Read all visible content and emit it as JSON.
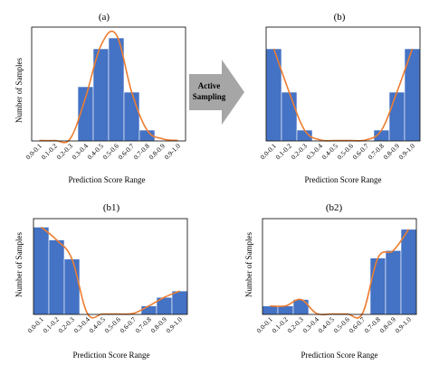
{
  "colors": {
    "bar": "#4472c4",
    "bar_edge": "#ffffff",
    "curve": "#ed7d31",
    "frame": "#000000",
    "arrow": "#a6a6a6"
  },
  "arrow": {
    "line1": "Active",
    "line2": "Sampling"
  },
  "chart_data": [
    {
      "type": "bar",
      "title": "(a)",
      "xlabel": "Prediction Score Range",
      "ylabel": "Number of Samples",
      "categories": [
        "0.0-0.1",
        "0.1-0.2",
        "0.2-0.3",
        "0.3-0.4",
        "0.4-0.5",
        "0.5-0.6",
        "0.6-0.7",
        "0.7-0.8",
        "0.8-0.9",
        "0.9-1.0"
      ],
      "values": [
        0,
        0,
        0,
        50,
        85,
        95,
        45,
        10,
        0,
        0
      ],
      "curve": [
        0,
        0,
        2,
        40,
        88,
        98,
        45,
        10,
        2,
        0
      ],
      "ylim": [
        0,
        105
      ],
      "grid": false
    },
    {
      "type": "bar",
      "title": "(b)",
      "xlabel": "Prediction Score Range",
      "ylabel": "",
      "categories": [
        "0.0-0.1",
        "0.1-0.2",
        "0.2-0.3",
        "0.3-0.4",
        "0.4-0.5",
        "0.5-0.6",
        "0.6-0.7",
        "0.7-0.8",
        "0.8-0.9",
        "0.9-1.0"
      ],
      "values": [
        85,
        45,
        10,
        0,
        0,
        0,
        0,
        10,
        45,
        85
      ],
      "curve": [
        85,
        45,
        10,
        1,
        0,
        0,
        1,
        10,
        45,
        85
      ],
      "ylim": [
        0,
        105
      ],
      "grid": false
    },
    {
      "type": "bar",
      "title": "(b1)",
      "xlabel": "Prediction Score Range",
      "ylabel": "Number of Samples",
      "categories": [
        "0.0-0.1",
        "0.1-0.2",
        "0.2-0.3",
        "0.3-0.4",
        "0.4-0.5",
        "0.5-0.6",
        "0.6-0.7",
        "0.7-0.8",
        "0.8-0.9",
        "0.9-1.0"
      ],
      "values": [
        82,
        70,
        52,
        0,
        0,
        0,
        0,
        8,
        16,
        22
      ],
      "curve": [
        82,
        70,
        52,
        1,
        0,
        0,
        1,
        8,
        16,
        22
      ],
      "ylim": [
        0,
        90
      ],
      "grid": false
    },
    {
      "type": "bar",
      "title": "(b2)",
      "xlabel": "Prediction Score Range",
      "ylabel": "Number of Samples",
      "categories": [
        "0.0-0.1",
        "0.1-0.2",
        "0.2-0.3",
        "0.3-0.4",
        "0.4-0.5",
        "0.5-0.6",
        "0.6-0.7",
        "0.7-0.8",
        "0.8-0.9",
        "0.9-1.0"
      ],
      "values": [
        8,
        8,
        14,
        0,
        0,
        0,
        0,
        53,
        60,
        80
      ],
      "curve": [
        8,
        8,
        14,
        1,
        0,
        0,
        1,
        53,
        60,
        80
      ],
      "ylim": [
        0,
        90
      ],
      "grid": false
    }
  ]
}
